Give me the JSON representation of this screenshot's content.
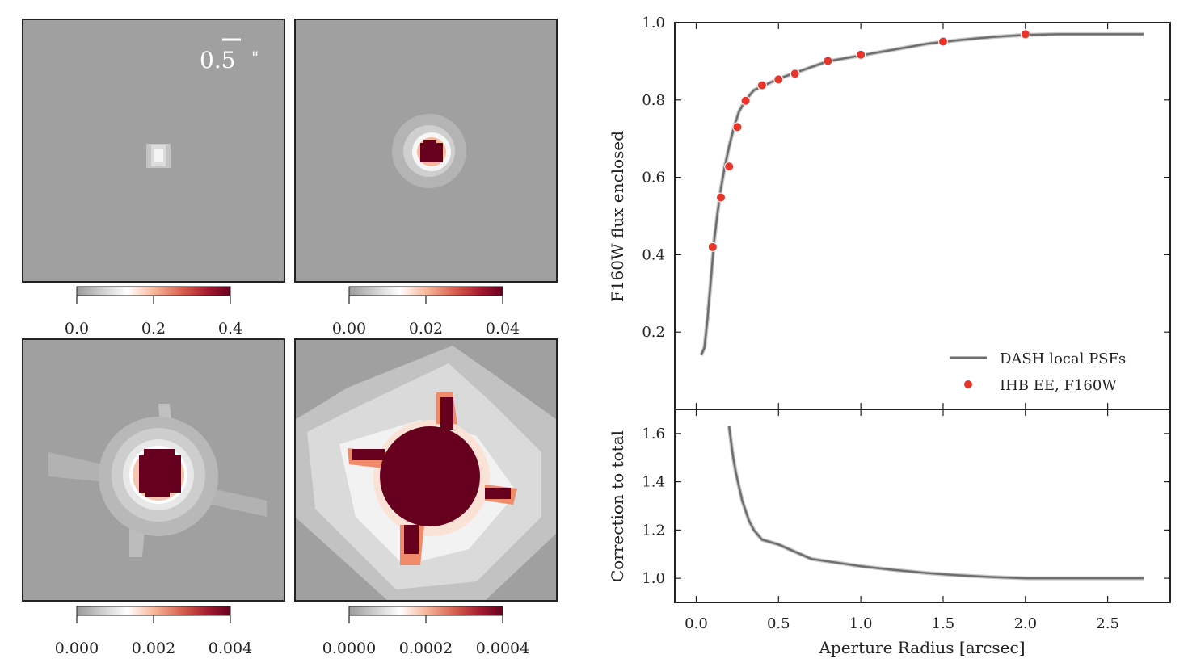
{
  "scale_bar": {
    "label": "0.5",
    "unit": "\""
  },
  "colors": {
    "panel_bg": "#a0a0a0",
    "frame": "#222222",
    "cmap": [
      "#a0a0a0",
      "#ffffff",
      "#fbd2bc",
      "#f09a78",
      "#d05848",
      "#a51c30",
      "#67001f"
    ],
    "dash_line": "#6e6e6e",
    "ihb_points": "#e8352b"
  },
  "stamps": [
    {
      "colorbar_ticks": [
        "0.0",
        "0.2",
        "0.4"
      ]
    },
    {
      "colorbar_ticks": [
        "0.00",
        "0.02",
        "0.04"
      ]
    },
    {
      "colorbar_ticks": [
        "0.000",
        "0.002",
        "0.004"
      ]
    },
    {
      "colorbar_ticks": [
        "0.0000",
        "0.0002",
        "0.0004"
      ]
    }
  ],
  "chart_data": [
    {
      "type": "line",
      "title": "",
      "ylabel": "F160W flux enclosed",
      "xlim": [
        -0.13,
        2.88
      ],
      "ylim": [
        0.0,
        1.0
      ],
      "yticks": [
        "0.2",
        "0.4",
        "0.6",
        "0.8",
        "1.0"
      ],
      "ytick_values": [
        0.2,
        0.4,
        0.6,
        0.8,
        1.0
      ],
      "legend": {
        "position": "lower-right",
        "entries": [
          "DASH local PSFs",
          "IHB EE, F160W"
        ]
      },
      "series": [
        {
          "name": "DASH local PSFs",
          "x": [
            0.03,
            0.05,
            0.07,
            0.09,
            0.11,
            0.13,
            0.15,
            0.17,
            0.2,
            0.23,
            0.26,
            0.3,
            0.35,
            0.4,
            0.5,
            0.6,
            0.7,
            0.8,
            1.0,
            1.2,
            1.4,
            1.6,
            1.8,
            2.0,
            2.2,
            2.4,
            2.6,
            2.72
          ],
          "y": [
            0.14,
            0.16,
            0.24,
            0.34,
            0.44,
            0.51,
            0.57,
            0.62,
            0.68,
            0.73,
            0.77,
            0.8,
            0.825,
            0.835,
            0.855,
            0.87,
            0.885,
            0.9,
            0.915,
            0.93,
            0.945,
            0.955,
            0.963,
            0.968,
            0.97,
            0.97,
            0.97,
            0.97
          ]
        },
        {
          "name": "IHB EE, F160W",
          "x": [
            0.1,
            0.15,
            0.2,
            0.25,
            0.3,
            0.4,
            0.5,
            0.6,
            0.8,
            1.0,
            1.5,
            2.0
          ],
          "y": [
            0.42,
            0.548,
            0.628,
            0.73,
            0.798,
            0.838,
            0.853,
            0.868,
            0.901,
            0.917,
            0.951,
            0.97
          ]
        }
      ]
    },
    {
      "type": "line",
      "title": "",
      "xlabel": "Aperture Radius [arcsec]",
      "ylabel": "Correction to total",
      "xlim": [
        -0.13,
        2.88
      ],
      "ylim": [
        0.9,
        1.7
      ],
      "xticks": [
        "0.0",
        "0.5",
        "1.0",
        "1.5",
        "2.0",
        "2.5"
      ],
      "xtick_values": [
        0.0,
        0.5,
        1.0,
        1.5,
        2.0,
        2.5
      ],
      "yticks": [
        "1.0",
        "1.2",
        "1.4",
        "1.6"
      ],
      "ytick_values": [
        1.0,
        1.2,
        1.4,
        1.6
      ],
      "series": [
        {
          "name": "DASH local PSFs",
          "x": [
            0.2,
            0.22,
            0.24,
            0.26,
            0.28,
            0.3,
            0.32,
            0.35,
            0.4,
            0.45,
            0.5,
            0.55,
            0.6,
            0.7,
            0.8,
            1.0,
            1.2,
            1.4,
            1.6,
            1.8,
            2.0,
            2.2,
            2.4,
            2.6,
            2.72
          ],
          "y": [
            1.63,
            1.52,
            1.44,
            1.38,
            1.32,
            1.28,
            1.24,
            1.2,
            1.16,
            1.15,
            1.14,
            1.125,
            1.11,
            1.08,
            1.07,
            1.05,
            1.035,
            1.022,
            1.012,
            1.005,
            1.0,
            1.0,
            1.0,
            1.0,
            1.0
          ]
        }
      ]
    }
  ]
}
